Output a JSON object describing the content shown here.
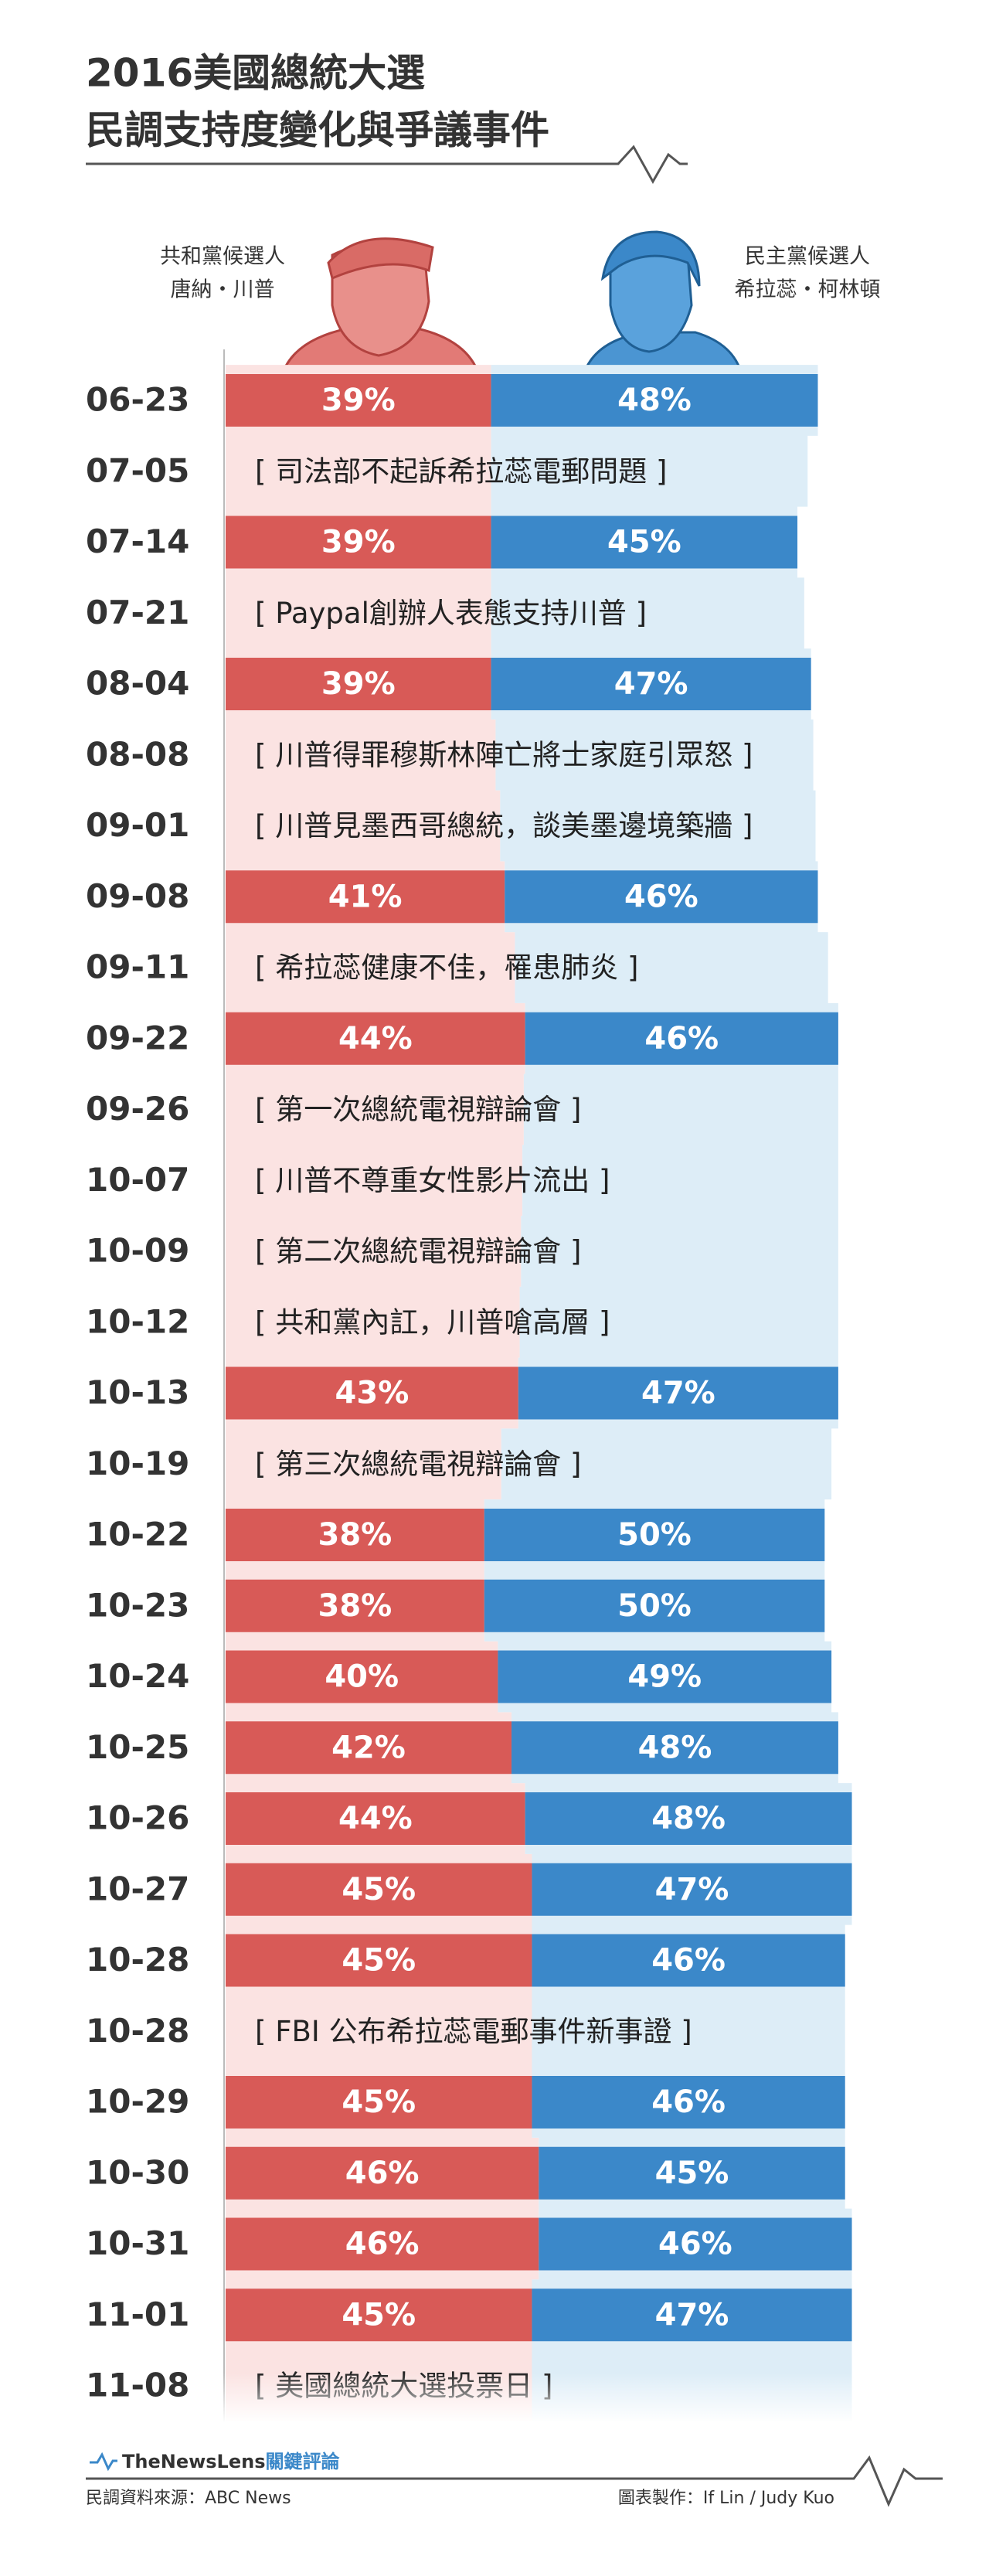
{
  "chart_data": {
    "type": "bar",
    "title": [
      "2016美國總統大選",
      "民調支持度變化與爭議事件"
    ],
    "categories": [
      "06-23",
      "07-05",
      "07-14",
      "07-21",
      "08-04",
      "08-08",
      "09-01",
      "09-08",
      "09-11",
      "09-22",
      "09-26",
      "10-07",
      "10-09",
      "10-12",
      "10-13",
      "10-19",
      "10-22",
      "10-23",
      "10-24",
      "10-25",
      "10-26",
      "10-27",
      "10-28",
      "10-28",
      "10-29",
      "10-30",
      "10-31",
      "11-01",
      "11-08"
    ],
    "series": [
      {
        "party": "共和黨候選人",
        "name": "唐納・川普",
        "color": "#d85a57",
        "values": [
          39,
          null,
          39,
          null,
          39,
          null,
          null,
          41,
          null,
          44,
          null,
          null,
          null,
          null,
          43,
          null,
          38,
          38,
          40,
          42,
          44,
          45,
          45,
          null,
          45,
          46,
          46,
          45,
          null
        ],
        "value_labels": [
          "39%",
          null,
          "39%",
          null,
          "39%",
          null,
          null,
          "41%",
          null,
          "44%",
          null,
          null,
          null,
          null,
          "43%",
          null,
          "38%",
          "38%",
          "40%",
          "42%",
          "44%",
          "45%",
          "45%",
          null,
          "45%",
          "46%",
          "46%",
          "45%",
          null
        ]
      },
      {
        "party": "民主黨候選人",
        "name": "希拉蕊・柯林頓",
        "color": "#3b88c9",
        "values": [
          48,
          null,
          45,
          null,
          47,
          null,
          null,
          46,
          null,
          46,
          null,
          null,
          null,
          null,
          47,
          null,
          50,
          50,
          49,
          48,
          48,
          47,
          46,
          null,
          46,
          45,
          46,
          47,
          null
        ],
        "value_labels": [
          "48%",
          null,
          "45%",
          null,
          "47%",
          null,
          null,
          "46%",
          null,
          "46%",
          null,
          null,
          null,
          null,
          "47%",
          null,
          "50%",
          "50%",
          "49%",
          "48%",
          "48%",
          "47%",
          "46%",
          null,
          "46%",
          "45%",
          "46%",
          "47%",
          null
        ]
      }
    ],
    "events": [
      null,
      "[ 司法部不起訴希拉蕊電郵問題 ]",
      null,
      "[ Paypal創辦人表態支持川普 ]",
      null,
      "[ 川普得罪穆斯林陣亡將士家庭引眾怒 ]",
      "[ 川普見墨西哥總統，談美墨邊境築牆 ]",
      null,
      "[ 希拉蕊健康不佳，罹患肺炎 ]",
      null,
      "[ 第一次總統電視辯論會 ]",
      "[ 川普不尊重女性影片流出 ]",
      "[ 第二次總統電視辯論會 ]",
      "[ 共和黨內訌，川普嗆高層 ]",
      null,
      "[ 第三次總統電視辯論會 ]",
      null,
      null,
      null,
      null,
      null,
      null,
      null,
      "[ FBI 公布希拉蕊電郵事件新事證 ]",
      null,
      null,
      null,
      null,
      "[ 美國總統大選投票日 ]"
    ],
    "xlim": [
      0,
      100
    ],
    "logo": [
      "TheNewsLens",
      "關鍵評論"
    ],
    "source": "民調資料來源：ABC News",
    "credit": "圖表製作：If Lin / Judy Kuo"
  }
}
